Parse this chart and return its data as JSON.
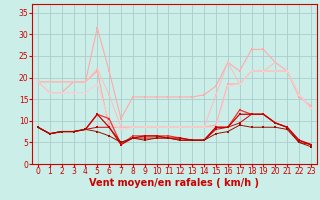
{
  "background_color": "#cceee8",
  "grid_color": "#aacccc",
  "xlabel": "Vent moyen/en rafales ( km/h )",
  "xlabel_color": "#cc0000",
  "xlabel_fontsize": 7,
  "tick_color": "#cc0000",
  "tick_fontsize": 5.5,
  "ylim": [
    0,
    37
  ],
  "xlim": [
    -0.5,
    23.5
  ],
  "yticks": [
    0,
    5,
    10,
    15,
    20,
    25,
    30,
    35
  ],
  "xticks": [
    0,
    1,
    2,
    3,
    4,
    5,
    6,
    7,
    8,
    9,
    10,
    11,
    12,
    13,
    14,
    15,
    16,
    17,
    18,
    19,
    20,
    21,
    22,
    23
  ],
  "series": [
    {
      "color": "#ffaaaa",
      "lw": 0.8,
      "marker": "s",
      "ms": 1.8,
      "values": [
        19,
        19,
        19,
        19,
        19,
        31.5,
        21.5,
        10.5,
        15.5,
        15.5,
        15.5,
        15.5,
        15.5,
        15.5,
        16.0,
        18.0,
        23.5,
        21.5,
        26.5,
        26.5,
        23.5,
        21.5,
        15.5,
        13.5
      ]
    },
    {
      "color": "#ffaaaa",
      "lw": 0.8,
      "marker": "s",
      "ms": 1.8,
      "values": [
        19,
        16.5,
        16.5,
        19,
        19,
        21.5,
        8.5,
        8.5,
        8.5,
        8.5,
        8.5,
        8.5,
        8.5,
        8.5,
        8.5,
        9.0,
        18.5,
        18.5,
        21.5,
        21.5,
        21.5,
        21.5,
        16.0,
        13.0
      ]
    },
    {
      "color": "#ffbbbb",
      "lw": 0.7,
      "marker": "s",
      "ms": 1.5,
      "values": [
        19,
        19,
        19,
        19,
        19,
        22.0,
        16.0,
        8.5,
        8.5,
        8.5,
        8.5,
        8.5,
        8.5,
        8.5,
        8.5,
        16.0,
        23.5,
        18.5,
        21.5,
        21.5,
        23.5,
        21.5,
        16.0,
        13.0
      ]
    },
    {
      "color": "#ffcccc",
      "lw": 0.7,
      "marker": "s",
      "ms": 1.5,
      "values": [
        19,
        16.5,
        16.5,
        16.5,
        16.5,
        18.5,
        10.0,
        8.0,
        8.5,
        8.5,
        8.5,
        8.5,
        8.5,
        8.5,
        8.5,
        8.5,
        18.0,
        18.5,
        21.5,
        21.5,
        21.5,
        21.5,
        16.0,
        13.0
      ]
    },
    {
      "color": "#ee3333",
      "lw": 0.9,
      "marker": "s",
      "ms": 1.8,
      "values": [
        8.5,
        7.0,
        7.5,
        7.5,
        8.0,
        11.5,
        10.5,
        4.5,
        6.5,
        6.5,
        6.5,
        6.5,
        6.0,
        5.5,
        5.5,
        8.5,
        8.5,
        12.5,
        11.5,
        11.5,
        9.5,
        8.5,
        5.5,
        4.5
      ]
    },
    {
      "color": "#cc0000",
      "lw": 0.9,
      "marker": "s",
      "ms": 1.8,
      "values": [
        8.5,
        7.0,
        7.5,
        7.5,
        8.0,
        11.5,
        8.5,
        4.5,
        6.0,
        6.5,
        6.5,
        6.0,
        6.0,
        5.5,
        5.5,
        8.5,
        8.5,
        11.5,
        11.5,
        11.5,
        9.5,
        8.5,
        5.5,
        4.5
      ]
    },
    {
      "color": "#cc0000",
      "lw": 0.7,
      "marker": "s",
      "ms": 1.5,
      "values": [
        8.5,
        7.0,
        7.5,
        7.5,
        8.0,
        8.5,
        8.5,
        5.0,
        6.0,
        6.0,
        6.0,
        6.0,
        5.5,
        5.5,
        5.5,
        8.0,
        8.5,
        9.5,
        11.5,
        11.5,
        9.5,
        8.5,
        5.0,
        4.5
      ]
    },
    {
      "color": "#991100",
      "lw": 0.7,
      "marker": "s",
      "ms": 1.5,
      "values": [
        8.5,
        7.0,
        7.5,
        7.5,
        8.0,
        7.5,
        6.5,
        5.0,
        6.0,
        5.5,
        6.0,
        6.0,
        5.5,
        5.5,
        5.5,
        7.0,
        7.5,
        9.0,
        8.5,
        8.5,
        8.5,
        8.0,
        5.0,
        4.0
      ]
    }
  ]
}
